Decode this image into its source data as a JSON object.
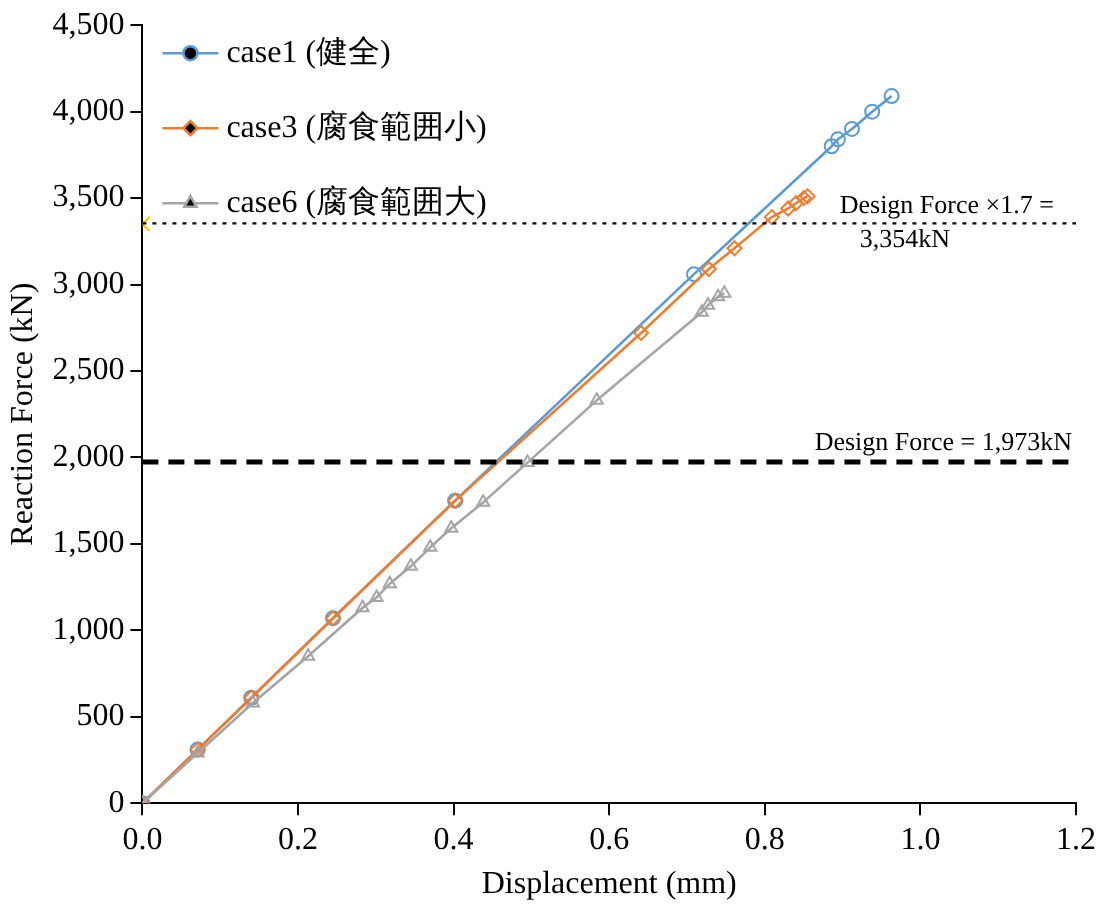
{
  "chart_data": {
    "type": "line",
    "xlabel": "Displacement (mm)",
    "ylabel": "Reaction Force (kN)",
    "xlim": [
      0,
      1.2
    ],
    "xticks": [
      {
        "value": 0,
        "label": "0.0"
      },
      {
        "value": 0.2,
        "label": "0.2"
      },
      {
        "value": 0.4,
        "label": "0.4"
      },
      {
        "value": 0.6,
        "label": "0.6"
      },
      {
        "value": 0.8,
        "label": "0.8"
      },
      {
        "value": 1,
        "label": "1.0"
      },
      {
        "value": 1.2,
        "label": "1.2"
      }
    ],
    "ylim": [
      0,
      4500
    ],
    "yticks": [
      {
        "value": 0,
        "label": "0"
      },
      {
        "value": 500,
        "label": "500"
      },
      {
        "value": 1000,
        "label": "1,000"
      },
      {
        "value": 1500,
        "label": "1,500"
      },
      {
        "value": 2000,
        "label": "2,000"
      },
      {
        "value": 2500,
        "label": "2,500"
      },
      {
        "value": 3000,
        "label": "3,000"
      },
      {
        "value": 3500,
        "label": "3,500"
      },
      {
        "value": 4000,
        "label": "4,000"
      },
      {
        "value": 4500,
        "label": "4,500"
      }
    ],
    "grid": false,
    "legend": "top left",
    "line_style": "solid",
    "series": [
      {
        "name": "case1 (健全)",
        "color": "#5b9bd5",
        "marker": "circle",
        "x": [
          0,
          0.071,
          0.14,
          0.245,
          0.402,
          0.709,
          0.886,
          0.894,
          0.912,
          0.938,
          0.963
        ],
        "values": [
          0,
          310,
          610,
          1070,
          1750,
          3060,
          3800,
          3840,
          3900,
          4000,
          4090
        ]
      },
      {
        "name": "case3 (腐食範囲小)",
        "color": "#ed7d31",
        "marker": "diamond",
        "x": [
          0,
          0.071,
          0.14,
          0.245,
          0.402,
          0.641,
          0.728,
          0.761,
          0.809,
          0.83,
          0.84,
          0.85,
          0.855
        ],
        "values": [
          0,
          310,
          610,
          1070,
          1750,
          2720,
          3090,
          3210,
          3390,
          3440,
          3470,
          3500,
          3510
        ]
      },
      {
        "name": "case6 (腐食範囲大)",
        "color": "#a5a5a5",
        "marker": "triangle",
        "x": [
          0,
          0.071,
          0.142,
          0.213,
          0.283,
          0.301,
          0.318,
          0.345,
          0.37,
          0.397,
          0.438,
          0.495,
          0.584,
          0.719,
          0.727,
          0.74,
          0.748
        ],
        "values": [
          0,
          290,
          580,
          850,
          1130,
          1190,
          1270,
          1370,
          1480,
          1590,
          1740,
          1970,
          2330,
          2840,
          2880,
          2930,
          2950
        ]
      },
      {
        "type": "scatter",
        "color": "#ffc000",
        "marker": "cross",
        "x": [
          0
        ],
        "values": [
          3350
        ]
      }
    ],
    "ref_lines": [
      {
        "axis": "y",
        "value": 3354,
        "label": "Design Force ×1.7 = 3,354kN",
        "line_style": "dotted",
        "color": "#000000"
      },
      {
        "axis": "y",
        "value": 1973,
        "label": "Design Force = 1,973kN",
        "line_style": "dashed",
        "color": "#000000"
      }
    ]
  }
}
